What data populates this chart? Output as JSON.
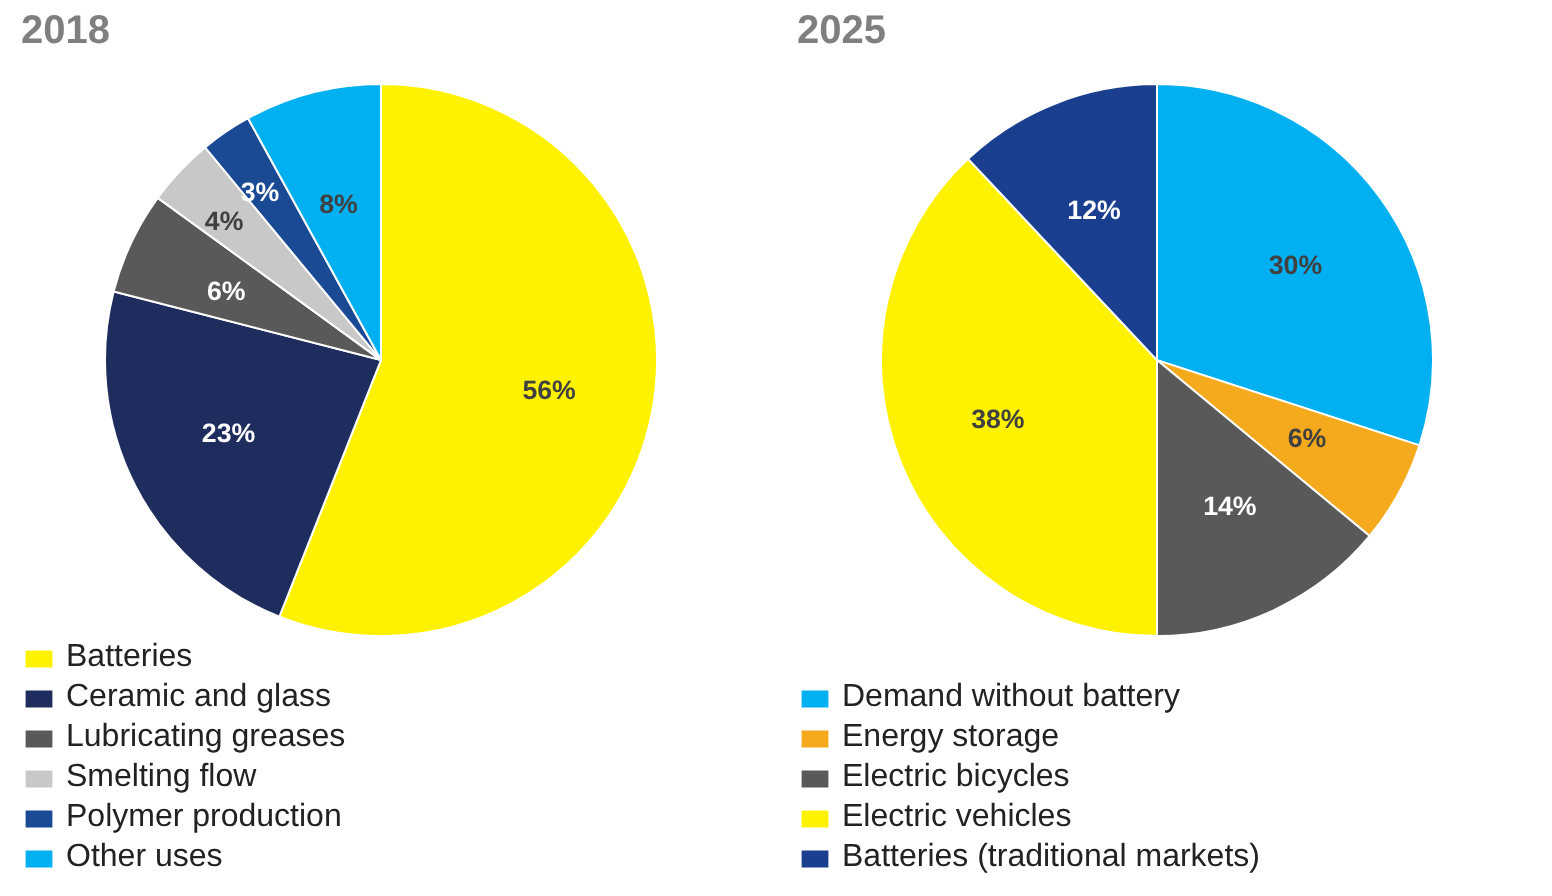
{
  "chart_data": [
    {
      "type": "pie",
      "title": "2018",
      "categories": [
        "Batteries",
        "Ceramic and glass",
        "Lubricating greases",
        "Smelting flow",
        "Polymer production",
        "Other uses"
      ],
      "values": [
        56,
        23,
        6,
        4,
        3,
        8
      ],
      "colors": [
        "#fff200",
        "#1f2d5e",
        "#595959",
        "#c8c8c8",
        "#1a4a94",
        "#00b0f0"
      ],
      "value_labels": [
        "56%",
        "23%",
        "6%",
        "4%",
        "3%",
        "8%"
      ],
      "legend": "bottom left"
    },
    {
      "type": "pie",
      "title": "2025",
      "categories": [
        "Demand without battery",
        "Energy storage",
        "Electric bicycles",
        "Electric vehicles",
        "Batteries (traditional markets)"
      ],
      "values": [
        30,
        6,
        14,
        38,
        12
      ],
      "colors": [
        "#00b0f0",
        "#f5a91c",
        "#595959",
        "#fff200",
        "#1b3f8f"
      ],
      "value_labels": [
        "30%",
        "6%",
        "14%",
        "38%",
        "12%"
      ],
      "legend": "bottom left"
    }
  ]
}
